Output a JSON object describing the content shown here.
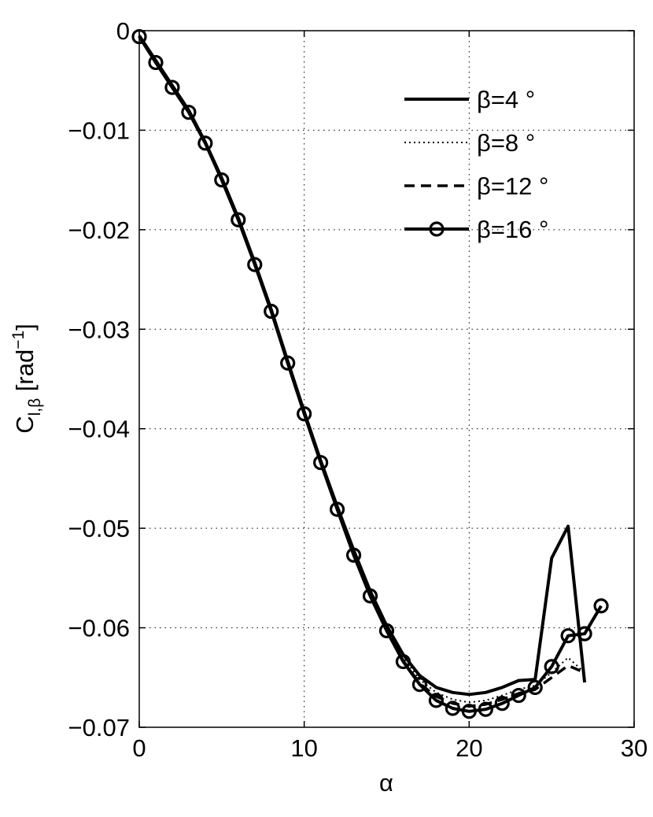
{
  "chart_data": {
    "type": "line",
    "title": "",
    "xlabel": "α",
    "ylabel": {
      "main": "C",
      "sub": "l,β",
      "unit_open": " [rad",
      "unit_sup": "−1",
      "unit_close": "]"
    },
    "xlim": [
      0,
      30
    ],
    "ylim": [
      -0.07,
      0
    ],
    "xticks": [
      0,
      10,
      20,
      30
    ],
    "xtick_labels": [
      "0",
      "10",
      "20",
      "30"
    ],
    "yticks": [
      0,
      -0.01,
      -0.02,
      -0.03,
      -0.04,
      -0.05,
      -0.06,
      -0.07
    ],
    "ytick_labels": [
      "0",
      "−0.01",
      "−0.02",
      "−0.03",
      "−0.04",
      "−0.05",
      "−0.06",
      "−0.07"
    ],
    "grid": true,
    "legend_position": "top-right",
    "series": [
      {
        "name": "β=4 °",
        "style": "solid",
        "x": [
          0,
          1,
          2,
          3,
          4,
          5,
          6,
          7,
          8,
          9,
          10,
          11,
          12,
          13,
          14,
          15,
          16,
          17,
          18,
          19,
          20,
          21,
          22,
          23,
          24,
          25,
          26,
          27
        ],
        "y": [
          -0.0005,
          -0.003,
          -0.0055,
          -0.008,
          -0.0112,
          -0.0148,
          -0.0188,
          -0.0233,
          -0.028,
          -0.0332,
          -0.0383,
          -0.0432,
          -0.0478,
          -0.0522,
          -0.0563,
          -0.0598,
          -0.0627,
          -0.0648,
          -0.066,
          -0.0665,
          -0.0667,
          -0.0665,
          -0.066,
          -0.0653,
          -0.0652,
          -0.053,
          -0.0498,
          -0.0655
        ]
      },
      {
        "name": "β=8 °",
        "style": "dotted",
        "x": [
          0,
          1,
          2,
          3,
          4,
          5,
          6,
          7,
          8,
          9,
          10,
          11,
          12,
          13,
          14,
          15,
          16,
          17,
          18,
          19,
          20,
          21,
          22,
          23,
          24,
          25,
          26,
          27
        ],
        "y": [
          -0.0006,
          -0.0031,
          -0.0056,
          -0.0081,
          -0.0113,
          -0.0149,
          -0.0189,
          -0.0234,
          -0.0281,
          -0.0333,
          -0.0384,
          -0.0433,
          -0.0479,
          -0.0524,
          -0.0566,
          -0.0601,
          -0.063,
          -0.0652,
          -0.0665,
          -0.0672,
          -0.0675,
          -0.0673,
          -0.0668,
          -0.0662,
          -0.0658,
          -0.0645,
          -0.063,
          -0.0645
        ]
      },
      {
        "name": "β=12 °",
        "style": "dashed",
        "x": [
          0,
          1,
          2,
          3,
          4,
          5,
          6,
          7,
          8,
          9,
          10,
          11,
          12,
          13,
          14,
          15,
          16,
          17,
          18,
          19,
          20,
          21,
          22,
          23,
          24,
          25,
          26,
          27
        ],
        "y": [
          -0.0006,
          -0.0032,
          -0.0057,
          -0.0082,
          -0.0113,
          -0.0149,
          -0.0189,
          -0.0234,
          -0.0281,
          -0.0333,
          -0.0384,
          -0.0433,
          -0.048,
          -0.0525,
          -0.0567,
          -0.0603,
          -0.0633,
          -0.0656,
          -0.0669,
          -0.0676,
          -0.0679,
          -0.0677,
          -0.0672,
          -0.0666,
          -0.0662,
          -0.065,
          -0.0638,
          -0.0645
        ]
      },
      {
        "name": "β=16 °",
        "style": "solid-circle",
        "x": [
          0,
          1,
          2,
          3,
          4,
          5,
          6,
          7,
          8,
          9,
          10,
          11,
          12,
          13,
          14,
          15,
          16,
          17,
          18,
          19,
          20,
          21,
          22,
          23,
          24,
          25,
          26,
          27,
          28
        ],
        "y": [
          -0.0006,
          -0.0032,
          -0.0057,
          -0.0082,
          -0.0113,
          -0.015,
          -0.019,
          -0.0235,
          -0.0282,
          -0.0334,
          -0.0385,
          -0.0434,
          -0.0481,
          -0.0527,
          -0.0568,
          -0.0603,
          -0.0634,
          -0.0657,
          -0.0673,
          -0.0681,
          -0.0684,
          -0.0682,
          -0.0676,
          -0.0668,
          -0.066,
          -0.0639,
          -0.0608,
          -0.0606,
          -0.0578
        ]
      }
    ]
  }
}
